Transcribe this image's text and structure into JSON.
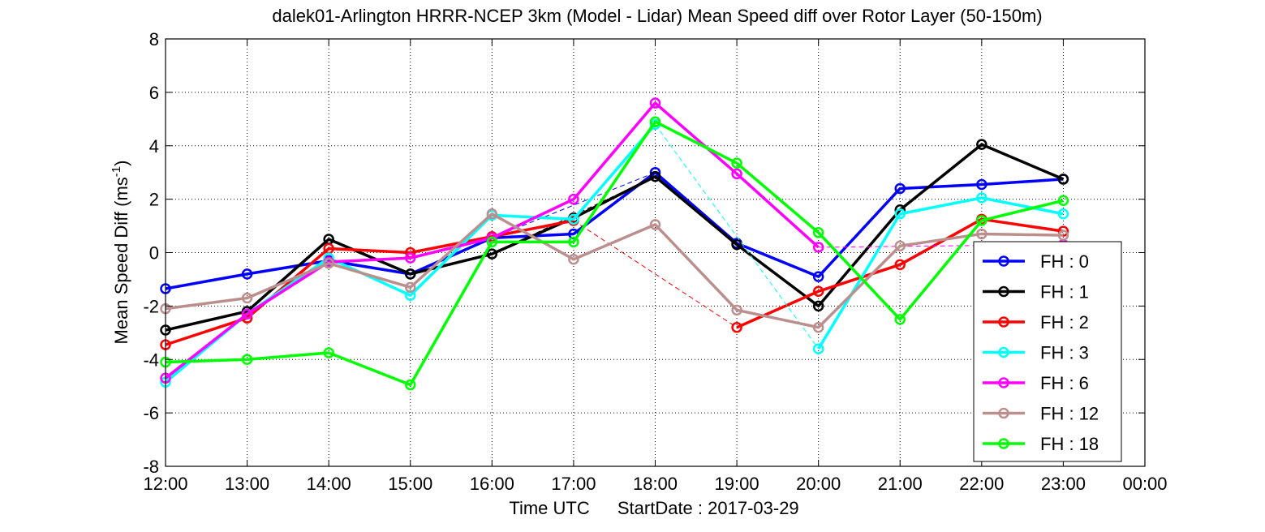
{
  "chart_data": {
    "type": "line",
    "title": "dalek01-Arlington HRRR-NCEP 3km (Model - Lidar) Mean Speed diff over Rotor Layer (50-150m)",
    "xlabel_main": "Time UTC",
    "xlabel_date": "StartDate : 2017-03-29",
    "ylabel_base": "Mean Speed Diff (ms",
    "ylabel_exp": "-1",
    "ylabel_close": ")",
    "x_ticks": [
      "12:00",
      "13:00",
      "14:00",
      "15:00",
      "16:00",
      "17:00",
      "18:00",
      "19:00",
      "20:00",
      "21:00",
      "22:00",
      "23:00",
      "00:00"
    ],
    "y_ticks": [
      8,
      6,
      4,
      2,
      0,
      -2,
      -4,
      -6,
      -8
    ],
    "ylim": [
      -8,
      8
    ],
    "grid": true,
    "legend_position": "bottom-right",
    "series": [
      {
        "name": "FH : 0",
        "color": "#0000ff",
        "values": [
          -1.35,
          -0.8,
          -0.3,
          -0.8,
          0.55,
          0.7,
          3.0,
          0.35,
          -0.9,
          2.4,
          2.55,
          2.75
        ],
        "dashed_segments": [
          [
            4,
            6
          ]
        ]
      },
      {
        "name": "FH : 1",
        "color": "#000000",
        "values": [
          -2.9,
          -2.2,
          0.5,
          -0.8,
          -0.05,
          1.3,
          2.85,
          0.3,
          -2.0,
          1.6,
          4.05,
          2.75
        ],
        "dashed_segments": [
          [
            4,
            6
          ]
        ]
      },
      {
        "name": "FH : 2",
        "color": "#ff0000",
        "values": [
          -3.45,
          -2.45,
          0.15,
          0.0,
          0.6,
          1.2,
          null,
          -2.8,
          -1.45,
          -0.45,
          1.25,
          0.8
        ],
        "dashed_segments": [
          [
            5,
            7
          ]
        ]
      },
      {
        "name": "FH : 3",
        "color": "#00ffff",
        "values": [
          -4.85,
          -2.3,
          -0.2,
          -1.6,
          1.4,
          1.25,
          4.8,
          null,
          -3.6,
          1.45,
          2.05,
          1.45
        ],
        "dashed_segments": [
          [
            6,
            8
          ]
        ]
      },
      {
        "name": "FH : 6",
        "color": "#ff00ff",
        "values": [
          -4.7,
          -2.3,
          -0.35,
          -0.2,
          0.55,
          2.0,
          5.6,
          2.95,
          0.2,
          null,
          null,
          0.3
        ],
        "dashed_segments": [
          [
            8,
            11
          ]
        ]
      },
      {
        "name": "FH : 12",
        "color": "#bc8f8f",
        "values": [
          -2.1,
          -1.7,
          -0.4,
          -1.3,
          1.45,
          -0.25,
          1.05,
          -2.15,
          -2.8,
          0.25,
          0.7,
          0.65
        ],
        "dashed_segments": []
      },
      {
        "name": "FH : 18",
        "color": "#00ff00",
        "values": [
          -4.1,
          -4.0,
          -3.75,
          -4.95,
          0.4,
          0.4,
          4.9,
          3.35,
          0.75,
          -2.5,
          1.2,
          1.95
        ],
        "dashed_segments": []
      }
    ]
  }
}
